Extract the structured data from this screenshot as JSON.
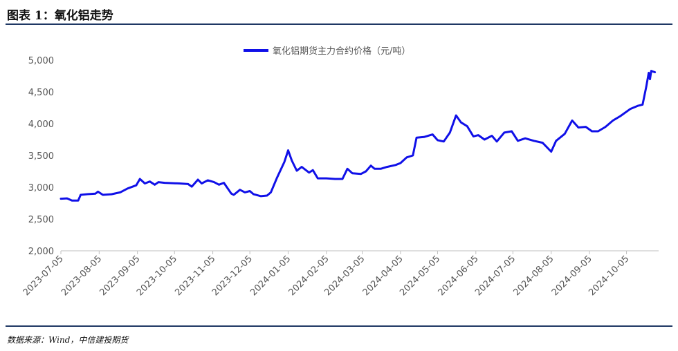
{
  "figure": {
    "title": "图表 1：氧化铝走势",
    "source": "数据来源：Wind，中信建投期货"
  },
  "colors": {
    "series": "#1010e8",
    "rule": "#1f3864",
    "axis": "#bfbfbf"
  },
  "chart_data": {
    "type": "line",
    "title": "",
    "xlabel": "",
    "ylabel": "",
    "ylim": [
      2000,
      5000
    ],
    "y_ticks": [
      "2,000",
      "2,500",
      "3,000",
      "3,500",
      "4,000",
      "4,500",
      "5,000"
    ],
    "y_tick_values": [
      2000,
      2500,
      3000,
      3500,
      4000,
      4500,
      5000
    ],
    "x_ticks": [
      "2023-07-05",
      "2023-08-05",
      "2023-09-05",
      "2023-10-05",
      "2023-11-05",
      "2023-12-05",
      "2024-01-05",
      "2024-02-05",
      "2024-03-05",
      "2024-04-05",
      "2024-05-05",
      "2024-06-05",
      "2024-07-05",
      "2024-08-05",
      "2024-09-05",
      "2024-10-05"
    ],
    "legend_position": "top",
    "grid": false,
    "series": [
      {
        "name": "氧化铝期货主力合约价格（元/吨）",
        "points": [
          [
            "2023-07-05",
            2820
          ],
          [
            "2023-07-10",
            2825
          ],
          [
            "2023-07-14",
            2790
          ],
          [
            "2023-07-19",
            2790
          ],
          [
            "2023-07-21",
            2880
          ],
          [
            "2023-07-26",
            2890
          ],
          [
            "2023-08-02",
            2900
          ],
          [
            "2023-08-04",
            2930
          ],
          [
            "2023-08-08",
            2880
          ],
          [
            "2023-08-15",
            2890
          ],
          [
            "2023-08-22",
            2920
          ],
          [
            "2023-08-28",
            2980
          ],
          [
            "2023-09-04",
            3030
          ],
          [
            "2023-09-07",
            3130
          ],
          [
            "2023-09-11",
            3060
          ],
          [
            "2023-09-15",
            3090
          ],
          [
            "2023-09-19",
            3040
          ],
          [
            "2023-09-22",
            3080
          ],
          [
            "2023-09-27",
            3070
          ],
          [
            "2023-10-09",
            3060
          ],
          [
            "2023-10-16",
            3050
          ],
          [
            "2023-10-19",
            3010
          ],
          [
            "2023-10-24",
            3120
          ],
          [
            "2023-10-27",
            3060
          ],
          [
            "2023-11-01",
            3110
          ],
          [
            "2023-11-06",
            3080
          ],
          [
            "2023-11-10",
            3040
          ],
          [
            "2023-11-14",
            3070
          ],
          [
            "2023-11-20",
            2900
          ],
          [
            "2023-11-22",
            2880
          ],
          [
            "2023-11-27",
            2960
          ],
          [
            "2023-12-01",
            2920
          ],
          [
            "2023-12-05",
            2940
          ],
          [
            "2023-12-08",
            2890
          ],
          [
            "2023-12-14",
            2860
          ],
          [
            "2023-12-19",
            2870
          ],
          [
            "2023-12-22",
            2920
          ],
          [
            "2023-12-27",
            3150
          ],
          [
            "2024-01-02",
            3400
          ],
          [
            "2024-01-05",
            3580
          ],
          [
            "2024-01-08",
            3420
          ],
          [
            "2024-01-12",
            3260
          ],
          [
            "2024-01-16",
            3320
          ],
          [
            "2024-01-22",
            3230
          ],
          [
            "2024-01-25",
            3270
          ],
          [
            "2024-01-29",
            3140
          ],
          [
            "2024-02-05",
            3140
          ],
          [
            "2024-02-12",
            3130
          ],
          [
            "2024-02-18",
            3130
          ],
          [
            "2024-02-22",
            3290
          ],
          [
            "2024-02-26",
            3220
          ],
          [
            "2024-03-04",
            3210
          ],
          [
            "2024-03-08",
            3250
          ],
          [
            "2024-03-12",
            3340
          ],
          [
            "2024-03-15",
            3290
          ],
          [
            "2024-03-20",
            3290
          ],
          [
            "2024-03-25",
            3320
          ],
          [
            "2024-04-01",
            3350
          ],
          [
            "2024-04-05",
            3380
          ],
          [
            "2024-04-10",
            3470
          ],
          [
            "2024-04-15",
            3500
          ],
          [
            "2024-04-18",
            3780
          ],
          [
            "2024-04-24",
            3790
          ],
          [
            "2024-05-01",
            3830
          ],
          [
            "2024-05-05",
            3740
          ],
          [
            "2024-05-10",
            3720
          ],
          [
            "2024-05-15",
            3860
          ],
          [
            "2024-05-20",
            4130
          ],
          [
            "2024-05-24",
            4020
          ],
          [
            "2024-05-29",
            3960
          ],
          [
            "2024-06-03",
            3800
          ],
          [
            "2024-06-07",
            3820
          ],
          [
            "2024-06-12",
            3750
          ],
          [
            "2024-06-18",
            3810
          ],
          [
            "2024-06-22",
            3720
          ],
          [
            "2024-06-28",
            3860
          ],
          [
            "2024-07-04",
            3880
          ],
          [
            "2024-07-09",
            3730
          ],
          [
            "2024-07-15",
            3770
          ],
          [
            "2024-07-22",
            3730
          ],
          [
            "2024-07-29",
            3700
          ],
          [
            "2024-08-05",
            3560
          ],
          [
            "2024-08-09",
            3730
          ],
          [
            "2024-08-16",
            3840
          ],
          [
            "2024-08-22",
            4050
          ],
          [
            "2024-08-27",
            3940
          ],
          [
            "2024-09-02",
            3950
          ],
          [
            "2024-09-07",
            3880
          ],
          [
            "2024-09-12",
            3880
          ],
          [
            "2024-09-18",
            3950
          ],
          [
            "2024-09-24",
            4050
          ],
          [
            "2024-09-30",
            4120
          ],
          [
            "2024-10-08",
            4230
          ],
          [
            "2024-10-14",
            4280
          ],
          [
            "2024-10-18",
            4300
          ],
          [
            "2024-10-21",
            4580
          ],
          [
            "2024-10-23",
            4800
          ],
          [
            "2024-10-24",
            4700
          ],
          [
            "2024-10-25",
            4830
          ],
          [
            "2024-10-28",
            4810
          ]
        ]
      }
    ]
  }
}
